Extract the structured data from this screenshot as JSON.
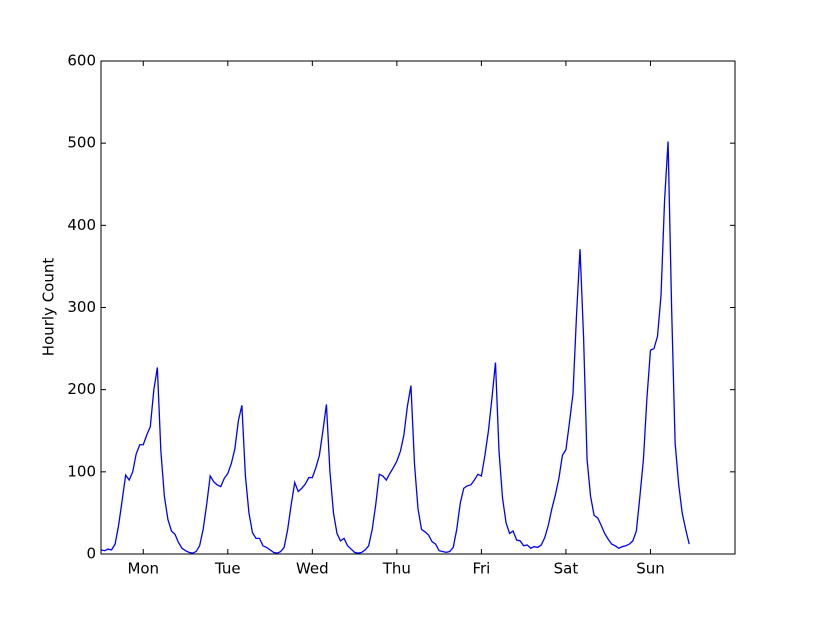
{
  "chart_data": {
    "type": "line",
    "ylabel": "Hourly Count",
    "x": [
      0,
      1,
      2,
      3,
      4,
      5,
      6,
      7,
      8,
      9,
      10,
      11,
      12,
      13,
      14,
      15,
      16,
      17,
      18,
      19,
      20,
      21,
      22,
      23,
      24,
      25,
      26,
      27,
      28,
      29,
      30,
      31,
      32,
      33,
      34,
      35,
      36,
      37,
      38,
      39,
      40,
      41,
      42,
      43,
      44,
      45,
      46,
      47,
      48,
      49,
      50,
      51,
      52,
      53,
      54,
      55,
      56,
      57,
      58,
      59,
      60,
      61,
      62,
      63,
      64,
      65,
      66,
      67,
      68,
      69,
      70,
      71,
      72,
      73,
      74,
      75,
      76,
      77,
      78,
      79,
      80,
      81,
      82,
      83,
      84,
      85,
      86,
      87,
      88,
      89,
      90,
      91,
      92,
      93,
      94,
      95,
      96,
      97,
      98,
      99,
      100,
      101,
      102,
      103,
      104,
      105,
      106,
      107,
      108,
      109,
      110,
      111,
      112,
      113,
      114,
      115,
      116,
      117,
      118,
      119,
      120,
      121,
      122,
      123,
      124,
      125,
      126,
      127,
      128,
      129,
      130,
      131,
      132,
      133,
      134,
      135,
      136,
      137,
      138,
      139,
      140,
      141,
      142,
      143,
      144,
      145,
      146,
      147,
      148,
      149,
      150,
      151,
      152,
      153,
      154,
      155,
      156,
      157,
      158,
      159,
      160,
      161,
      162,
      163,
      164,
      165,
      166,
      167
    ],
    "series": [
      {
        "color": "#0000ff",
        "values": [
          5,
          4,
          6,
          5,
          12,
          35,
          65,
          96,
          90,
          100,
          122,
          133,
          133,
          145,
          155,
          200,
          227,
          125,
          70,
          42,
          28,
          24,
          14,
          7,
          4,
          2,
          1,
          3,
          10,
          30,
          60,
          95,
          88,
          84,
          82,
          92,
          98,
          110,
          128,
          162,
          181,
          95,
          50,
          26,
          19,
          19,
          10,
          8,
          5,
          2,
          1,
          3,
          8,
          30,
          60,
          87,
          76,
          80,
          85,
          93,
          93,
          105,
          120,
          150,
          182,
          100,
          50,
          25,
          16,
          19,
          10,
          6,
          2,
          1,
          2,
          5,
          10,
          30,
          60,
          97,
          95,
          90,
          98,
          105,
          113,
          125,
          145,
          180,
          205,
          110,
          55,
          30,
          27,
          23,
          15,
          12,
          4,
          3,
          2,
          3,
          8,
          30,
          62,
          80,
          83,
          84,
          90,
          97,
          95,
          120,
          150,
          190,
          233,
          125,
          68,
          38,
          25,
          28,
          17,
          16,
          10,
          11,
          7,
          9,
          8,
          11,
          20,
          35,
          55,
          72,
          92,
          120,
          127,
          160,
          195,
          290,
          371,
          265,
          115,
          70,
          47,
          44,
          35,
          25,
          18,
          12,
          10,
          7,
          9,
          10,
          12,
          16,
          28,
          70,
          115,
          190,
          248,
          250,
          265,
          315,
          430,
          502,
          300,
          135,
          85,
          50,
          30,
          12
        ]
      }
    ],
    "xlim": [
      0,
      180
    ],
    "xticks": [
      {
        "value": 12,
        "label": "Mon"
      },
      {
        "value": 36,
        "label": "Tue"
      },
      {
        "value": 60,
        "label": "Wed"
      },
      {
        "value": 84,
        "label": "Thu"
      },
      {
        "value": 108,
        "label": "Fri"
      },
      {
        "value": 132,
        "label": "Sat"
      },
      {
        "value": 156,
        "label": "Sun"
      }
    ],
    "ylim": [
      0,
      600
    ],
    "yticks": [
      0,
      100,
      200,
      300,
      400,
      500,
      600
    ]
  }
}
